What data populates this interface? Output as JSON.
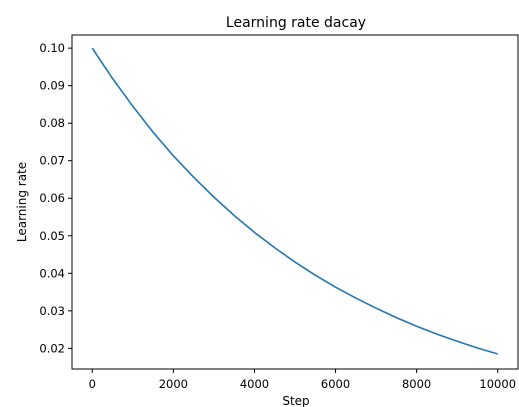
{
  "chart_data": {
    "type": "line",
    "title": "Learning rate dacay",
    "xlabel": "Step",
    "ylabel": "Learning rate",
    "xlim": [
      -500,
      10500
    ],
    "ylim": [
      0.0145,
      0.1035
    ],
    "xticks": [
      0,
      2000,
      4000,
      6000,
      8000,
      10000
    ],
    "xtick_labels": [
      "0",
      "2000",
      "4000",
      "6000",
      "8000",
      "10000"
    ],
    "yticks": [
      0.02,
      0.03,
      0.04,
      0.05,
      0.06,
      0.07,
      0.08,
      0.09,
      0.1
    ],
    "ytick_labels": [
      "0.02",
      "0.03",
      "0.04",
      "0.05",
      "0.06",
      "0.07",
      "0.08",
      "0.09",
      "0.10"
    ],
    "grid": false,
    "series": [
      {
        "color": "#1f77b4",
        "x": [
          0,
          500,
          1000,
          1500,
          2000,
          2500,
          3000,
          3500,
          4000,
          4500,
          5000,
          5500,
          6000,
          6500,
          7000,
          7500,
          8000,
          8500,
          9000,
          9500,
          10000
        ],
        "y": [
          0.1,
          0.0919,
          0.0845,
          0.0776,
          0.0713,
          0.0656,
          0.0603,
          0.0554,
          0.0509,
          0.0468,
          0.043,
          0.0395,
          0.0363,
          0.0334,
          0.0307,
          0.0282,
          0.0259,
          0.0238,
          0.0219,
          0.0201,
          0.0185
        ]
      }
    ]
  }
}
